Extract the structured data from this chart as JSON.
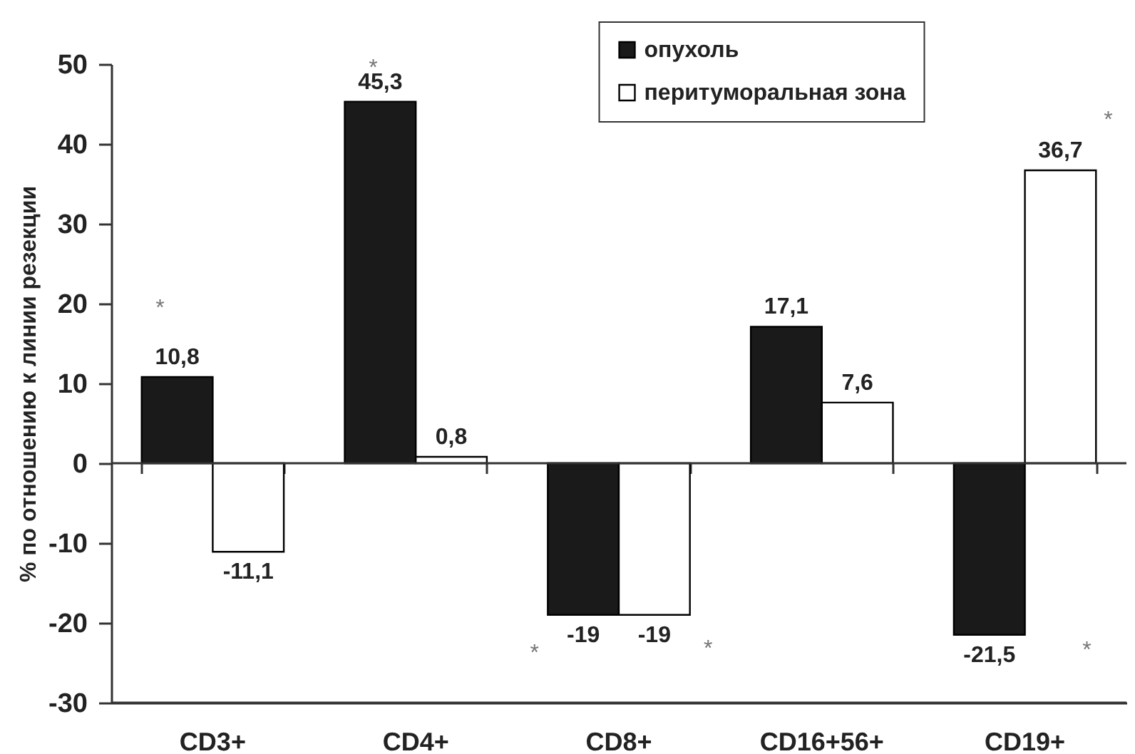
{
  "chart_data": {
    "type": "bar",
    "ylabel": "% по отношению к линии резекции",
    "categories": [
      "CD3+",
      "CD4+",
      "CD8+",
      "CD16+56+",
      "CD19+"
    ],
    "series": [
      {
        "name": "опухоль",
        "color": "#1a1a1a",
        "values": [
          10.8,
          45.3,
          -19,
          17.1,
          -21.5
        ],
        "value_labels": [
          "10,8",
          "45,3",
          "-19",
          "17,1",
          "-21,5"
        ]
      },
      {
        "name": "перитуморальная зона",
        "color": "#ffffff",
        "values": [
          -11.1,
          0.8,
          -19,
          7.6,
          36.7
        ],
        "value_labels": [
          "-11,1",
          "0,8",
          "-19",
          "7,6",
          "36,7"
        ]
      }
    ],
    "ylim": [
      -30,
      50
    ],
    "yticks": [
      -30,
      -20,
      -10,
      0,
      10,
      20,
      30,
      40,
      50
    ],
    "grid": false,
    "legend": "top",
    "ref_lines": [
      {
        "axis": "y",
        "value": 0,
        "color": "#333333"
      }
    ],
    "annotations": [
      "*",
      "*",
      "*",
      "*",
      "*",
      "*"
    ]
  }
}
